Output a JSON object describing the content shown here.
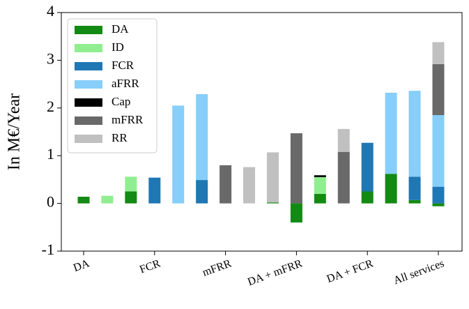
{
  "chart_data": {
    "type": "bar",
    "stacked": true,
    "ylabel": "In M€/Year",
    "categories": [
      "DA",
      null,
      null,
      "FCR",
      null,
      null,
      "mFRR",
      null,
      null,
      "DA + mFRR",
      null,
      null,
      "DA + FCR",
      null,
      null,
      "All services"
    ],
    "series": [
      {
        "name": "DA",
        "color": "#138a13",
        "values": [
          0.14,
          null,
          0.25,
          null,
          null,
          null,
          null,
          null,
          0.02,
          -0.4,
          0.2,
          null,
          0.25,
          0.62,
          0.07,
          -0.06
        ]
      },
      {
        "name": "ID",
        "color": "#90ee90",
        "values": [
          null,
          0.16,
          0.31,
          null,
          null,
          null,
          null,
          null,
          null,
          null,
          0.35,
          null,
          null,
          null,
          null,
          null
        ]
      },
      {
        "name": "FCR",
        "color": "#1f77b4",
        "values": [
          null,
          null,
          null,
          0.54,
          null,
          0.49,
          null,
          null,
          null,
          null,
          null,
          null,
          1.02,
          null,
          0.49,
          0.35
        ]
      },
      {
        "name": "aFRR",
        "color": "#87cefa",
        "values": [
          null,
          null,
          null,
          null,
          2.05,
          1.8,
          null,
          null,
          null,
          null,
          null,
          null,
          null,
          1.7,
          1.8,
          1.5
        ]
      },
      {
        "name": "Cap",
        "color": "#000000",
        "values": [
          null,
          null,
          null,
          null,
          null,
          null,
          null,
          null,
          null,
          null,
          0.04,
          null,
          null,
          null,
          null,
          null
        ]
      },
      {
        "name": "mFRR",
        "color": "#696969",
        "values": [
          null,
          null,
          null,
          null,
          null,
          null,
          0.8,
          null,
          null,
          1.47,
          null,
          1.08,
          null,
          null,
          null,
          1.07
        ]
      },
      {
        "name": "RR",
        "color": "#c0c0c0",
        "values": [
          null,
          null,
          null,
          null,
          null,
          null,
          null,
          0.76,
          1.05,
          null,
          null,
          0.48,
          null,
          null,
          null,
          0.46
        ]
      }
    ],
    "ylim": [
      -1,
      4
    ],
    "yticks": [
      -1,
      0,
      1,
      2,
      3,
      4
    ],
    "grid": false,
    "legend": "upper left"
  }
}
